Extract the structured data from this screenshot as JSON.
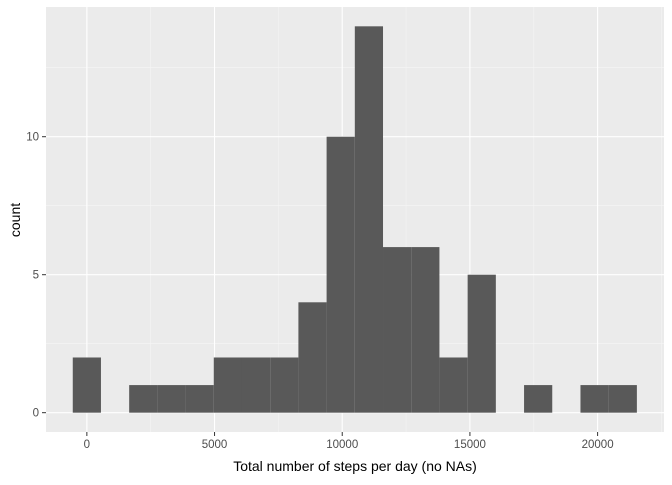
{
  "chart_data": {
    "type": "bar",
    "xlabel": "Total number of steps per day (no NAs)",
    "ylabel": "count",
    "bin_width": 1104.5,
    "bins": [
      {
        "x_start": -552,
        "x_end": 552,
        "count": 2
      },
      {
        "x_start": 552,
        "x_end": 1657,
        "count": 0
      },
      {
        "x_start": 1657,
        "x_end": 2761,
        "count": 1
      },
      {
        "x_start": 2761,
        "x_end": 3866,
        "count": 1
      },
      {
        "x_start": 3866,
        "x_end": 4970,
        "count": 1
      },
      {
        "x_start": 4970,
        "x_end": 6075,
        "count": 2
      },
      {
        "x_start": 6075,
        "x_end": 7179,
        "count": 2
      },
      {
        "x_start": 7179,
        "x_end": 8284,
        "count": 2
      },
      {
        "x_start": 8284,
        "x_end": 9388,
        "count": 4
      },
      {
        "x_start": 9388,
        "x_end": 10493,
        "count": 10
      },
      {
        "x_start": 10493,
        "x_end": 11597,
        "count": 14
      },
      {
        "x_start": 11597,
        "x_end": 12702,
        "count": 6
      },
      {
        "x_start": 12702,
        "x_end": 13806,
        "count": 6
      },
      {
        "x_start": 13806,
        "x_end": 14911,
        "count": 2
      },
      {
        "x_start": 14911,
        "x_end": 16015,
        "count": 5
      },
      {
        "x_start": 16015,
        "x_end": 17120,
        "count": 0
      },
      {
        "x_start": 17120,
        "x_end": 18224,
        "count": 1
      },
      {
        "x_start": 18224,
        "x_end": 19329,
        "count": 0
      },
      {
        "x_start": 19329,
        "x_end": 20433,
        "count": 1
      },
      {
        "x_start": 20433,
        "x_end": 21538,
        "count": 1
      }
    ],
    "x_ticks": [
      0,
      5000,
      10000,
      15000,
      20000
    ],
    "x_tick_labels": [
      "0",
      "5000",
      "10000",
      "15000",
      "20000"
    ],
    "y_ticks": [
      0,
      5,
      10
    ],
    "y_tick_labels": [
      "0",
      "5",
      "10"
    ],
    "xlim": [
      -1600,
      22600
    ],
    "ylim": [
      -0.7,
      14.7
    ],
    "grid": true,
    "colors": {
      "panel": "#ebebeb",
      "bar": "#595959",
      "grid_major": "#ffffff",
      "grid_minor": "#f5f5f5"
    }
  }
}
